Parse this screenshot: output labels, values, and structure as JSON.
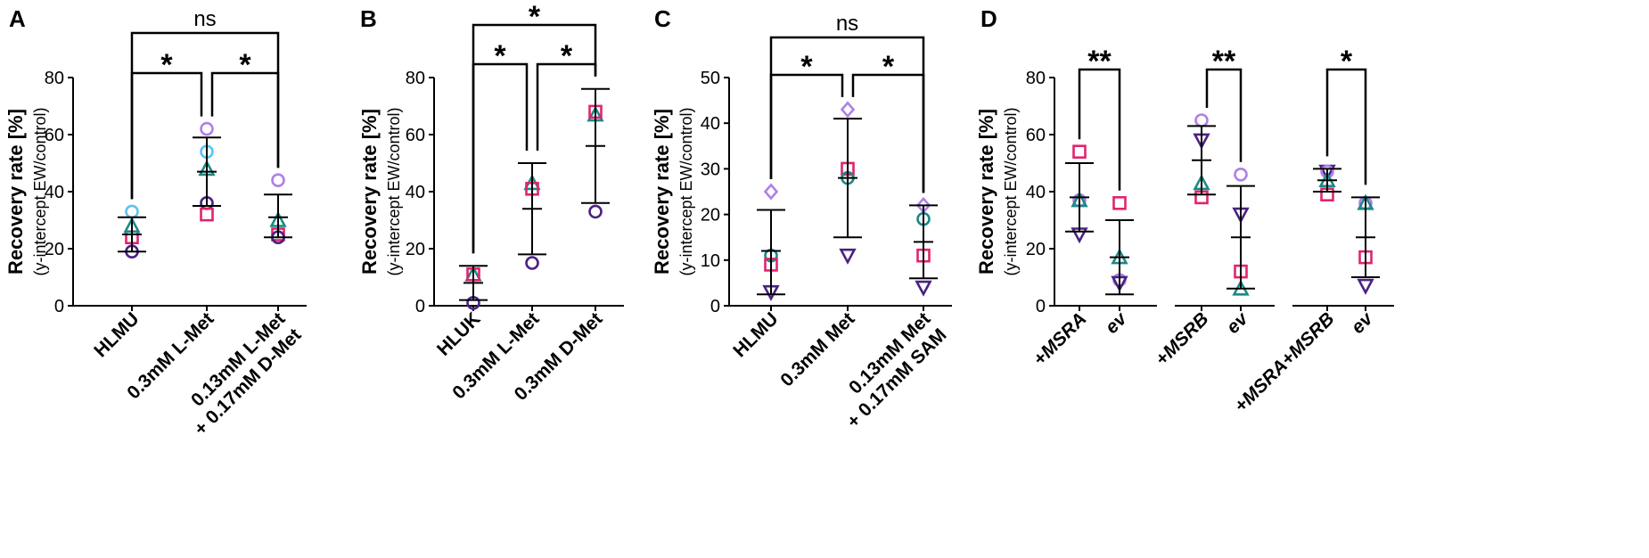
{
  "figure": {
    "colors": {
      "axis": "#000000",
      "light_blue": "#5bc4ea",
      "lavender": "#b17fe8",
      "magenta": "#e0246f",
      "teal": "#1a8a86",
      "purple": "#4a2280"
    }
  },
  "chart_data": [
    {
      "panel": "A",
      "type": "scatter",
      "ylabel": "Recovery rate [%]",
      "ylabel2": "(y-intercept EW/control)",
      "ylim": [
        0,
        80
      ],
      "yticks": [
        0,
        20,
        40,
        60,
        80
      ],
      "categories": [
        "HLMU",
        "0.3mM L-Met",
        "0.13mM L-Met",
        "+ 0.17mM D-Met"
      ],
      "points": [
        {
          "group": 0,
          "items": [
            {
              "shape": "circle",
              "color": "light_blue",
              "value": 33
            },
            {
              "shape": "square",
              "color": "magenta",
              "value": 24
            },
            {
              "shape": "triangle",
              "color": "teal",
              "value": 28
            },
            {
              "shape": "circle",
              "color": "purple",
              "value": 19
            }
          ]
        },
        {
          "group": 1,
          "items": [
            {
              "shape": "circle",
              "color": "lavender",
              "value": 62
            },
            {
              "shape": "circle",
              "color": "light_blue",
              "value": 54
            },
            {
              "shape": "triangle",
              "color": "teal",
              "value": 48
            },
            {
              "shape": "circle",
              "color": "purple",
              "value": 36
            },
            {
              "shape": "square",
              "color": "magenta",
              "value": 32
            }
          ]
        },
        {
          "group": 2,
          "items": [
            {
              "shape": "circle",
              "color": "lavender",
              "value": 44
            },
            {
              "shape": "triangle",
              "color": "teal",
              "value": 30
            },
            {
              "shape": "square",
              "color": "magenta",
              "value": 25
            },
            {
              "shape": "circle",
              "color": "purple",
              "value": 24
            }
          ]
        }
      ],
      "errorbars": [
        {
          "group": 0,
          "mean": 25,
          "low": 19,
          "high": 31
        },
        {
          "group": 1,
          "mean": 47,
          "low": 35,
          "high": 59
        },
        {
          "group": 2,
          "mean": 31,
          "low": 24,
          "high": 39
        }
      ],
      "brackets": [
        {
          "from": 0,
          "to": 1,
          "label": "*"
        },
        {
          "from": 1,
          "to": 2,
          "label": "*"
        },
        {
          "from": 0,
          "to": 2,
          "label": "ns"
        }
      ]
    },
    {
      "panel": "B",
      "type": "scatter",
      "ylabel": "Recovery rate [%]",
      "ylabel2": "(y-intercept EW/control)",
      "ylim": [
        0,
        80
      ],
      "yticks": [
        0,
        20,
        40,
        60,
        80
      ],
      "categories": [
        "HLUK",
        "0.3mM L-Met",
        "0.3mM D-Met"
      ],
      "points": [
        {
          "group": 0,
          "items": [
            {
              "shape": "triangle",
              "color": "teal",
              "value": 11
            },
            {
              "shape": "square",
              "color": "magenta",
              "value": 11
            },
            {
              "shape": "circle",
              "color": "purple",
              "value": 1
            }
          ]
        },
        {
          "group": 1,
          "items": [
            {
              "shape": "triangle",
              "color": "teal",
              "value": 43
            },
            {
              "shape": "square",
              "color": "magenta",
              "value": 41
            },
            {
              "shape": "circle",
              "color": "purple",
              "value": 15
            }
          ]
        },
        {
          "group": 2,
          "items": [
            {
              "shape": "triangle",
              "color": "teal",
              "value": 67
            },
            {
              "shape": "square",
              "color": "magenta",
              "value": 68
            },
            {
              "shape": "circle",
              "color": "purple",
              "value": 33
            }
          ]
        }
      ],
      "errorbars": [
        {
          "group": 0,
          "mean": 8,
          "low": 2,
          "high": 14
        },
        {
          "group": 1,
          "mean": 34,
          "low": 18,
          "high": 50
        },
        {
          "group": 2,
          "mean": 56,
          "low": 36,
          "high": 76
        }
      ],
      "brackets": [
        {
          "from": 0,
          "to": 1,
          "label": "*"
        },
        {
          "from": 1,
          "to": 2,
          "label": "*"
        },
        {
          "from": 0,
          "to": 2,
          "label": "*"
        }
      ]
    },
    {
      "panel": "C",
      "type": "scatter",
      "ylabel": "Recovery rate [%]",
      "ylabel2": "(y-intercept EW/control)",
      "ylim": [
        0,
        50
      ],
      "yticks": [
        0,
        10,
        20,
        30,
        40,
        50
      ],
      "categories": [
        "HLMU",
        "0.3mM Met",
        "0.13mM Met",
        "+ 0.17mM SAM"
      ],
      "points": [
        {
          "group": 0,
          "items": [
            {
              "shape": "diamond",
              "color": "lavender",
              "value": 25
            },
            {
              "shape": "circle",
              "color": "teal",
              "value": 11
            },
            {
              "shape": "square",
              "color": "magenta",
              "value": 9
            },
            {
              "shape": "triangle-down",
              "color": "purple",
              "value": 3
            }
          ]
        },
        {
          "group": 1,
          "items": [
            {
              "shape": "diamond",
              "color": "lavender",
              "value": 43
            },
            {
              "shape": "square",
              "color": "magenta",
              "value": 30
            },
            {
              "shape": "circle",
              "color": "teal",
              "value": 28
            },
            {
              "shape": "triangle-down",
              "color": "purple",
              "value": 11
            }
          ]
        },
        {
          "group": 2,
          "items": [
            {
              "shape": "diamond",
              "color": "lavender",
              "value": 22
            },
            {
              "shape": "circle",
              "color": "teal",
              "value": 19
            },
            {
              "shape": "square",
              "color": "magenta",
              "value": 11
            },
            {
              "shape": "triangle-down",
              "color": "purple",
              "value": 4
            }
          ]
        }
      ],
      "errorbars": [
        {
          "group": 0,
          "mean": 12,
          "low": 2.5,
          "high": 21
        },
        {
          "group": 1,
          "mean": 28,
          "low": 15,
          "high": 41
        },
        {
          "group": 2,
          "mean": 14,
          "low": 6,
          "high": 22
        }
      ],
      "brackets": [
        {
          "from": 0,
          "to": 1,
          "label": "*"
        },
        {
          "from": 1,
          "to": 2,
          "label": "*"
        },
        {
          "from": 0,
          "to": 2,
          "label": "ns"
        }
      ]
    },
    {
      "panel": "D",
      "type": "scatter",
      "ylabel": "Recovery rate [%]",
      "ylabel2": "(y-intercept EW/control)",
      "ylim": [
        0,
        80
      ],
      "yticks": [
        0,
        20,
        40,
        60,
        80
      ],
      "categories": [
        "+MSRA",
        "ev",
        "+MSRB",
        "ev",
        "+MSRA+MSRB",
        "ev"
      ],
      "points": [
        {
          "group": 0,
          "items": [
            {
              "shape": "square",
              "color": "magenta",
              "value": 54
            },
            {
              "shape": "circle",
              "color": "lavender",
              "value": 37
            },
            {
              "shape": "triangle",
              "color": "teal",
              "value": 37
            },
            {
              "shape": "triangle-down",
              "color": "purple",
              "value": 25
            }
          ]
        },
        {
          "group": 1,
          "items": [
            {
              "shape": "square",
              "color": "magenta",
              "value": 36
            },
            {
              "shape": "triangle",
              "color": "teal",
              "value": 17
            },
            {
              "shape": "circle",
              "color": "lavender",
              "value": 9
            },
            {
              "shape": "triangle-down",
              "color": "purple",
              "value": 8
            }
          ]
        },
        {
          "group": 2,
          "items": [
            {
              "shape": "circle",
              "color": "lavender",
              "value": 65
            },
            {
              "shape": "triangle-down",
              "color": "purple",
              "value": 58
            },
            {
              "shape": "triangle",
              "color": "teal",
              "value": 43
            },
            {
              "shape": "square",
              "color": "magenta",
              "value": 38
            }
          ]
        },
        {
          "group": 3,
          "items": [
            {
              "shape": "circle",
              "color": "lavender",
              "value": 46
            },
            {
              "shape": "triangle-down",
              "color": "purple",
              "value": 32
            },
            {
              "shape": "square",
              "color": "magenta",
              "value": 12
            },
            {
              "shape": "triangle",
              "color": "teal",
              "value": 6
            }
          ]
        },
        {
          "group": 4,
          "items": [
            {
              "shape": "triangle-down",
              "color": "purple",
              "value": 47
            },
            {
              "shape": "circle",
              "color": "lavender",
              "value": 47
            },
            {
              "shape": "triangle",
              "color": "teal",
              "value": 44
            },
            {
              "shape": "square",
              "color": "magenta",
              "value": 39
            }
          ]
        },
        {
          "group": 5,
          "items": [
            {
              "shape": "circle",
              "color": "lavender",
              "value": 36
            },
            {
              "shape": "triangle",
              "color": "teal",
              "value": 36
            },
            {
              "shape": "square",
              "color": "magenta",
              "value": 17
            },
            {
              "shape": "triangle-down",
              "color": "purple",
              "value": 7
            }
          ]
        }
      ],
      "errorbars": [
        {
          "group": 0,
          "mean": 38,
          "low": 26,
          "high": 50
        },
        {
          "group": 1,
          "mean": 17,
          "low": 4,
          "high": 30
        },
        {
          "group": 2,
          "mean": 51,
          "low": 39,
          "high": 63
        },
        {
          "group": 3,
          "mean": 24,
          "low": 6,
          "high": 42
        },
        {
          "group": 4,
          "mean": 44,
          "low": 40,
          "high": 48
        },
        {
          "group": 5,
          "mean": 24,
          "low": 10,
          "high": 38
        }
      ],
      "brackets": [
        {
          "from": 0,
          "to": 1,
          "label": "**"
        },
        {
          "from": 2,
          "to": 3,
          "label": "**"
        },
        {
          "from": 4,
          "to": 5,
          "label": "*"
        }
      ]
    }
  ]
}
